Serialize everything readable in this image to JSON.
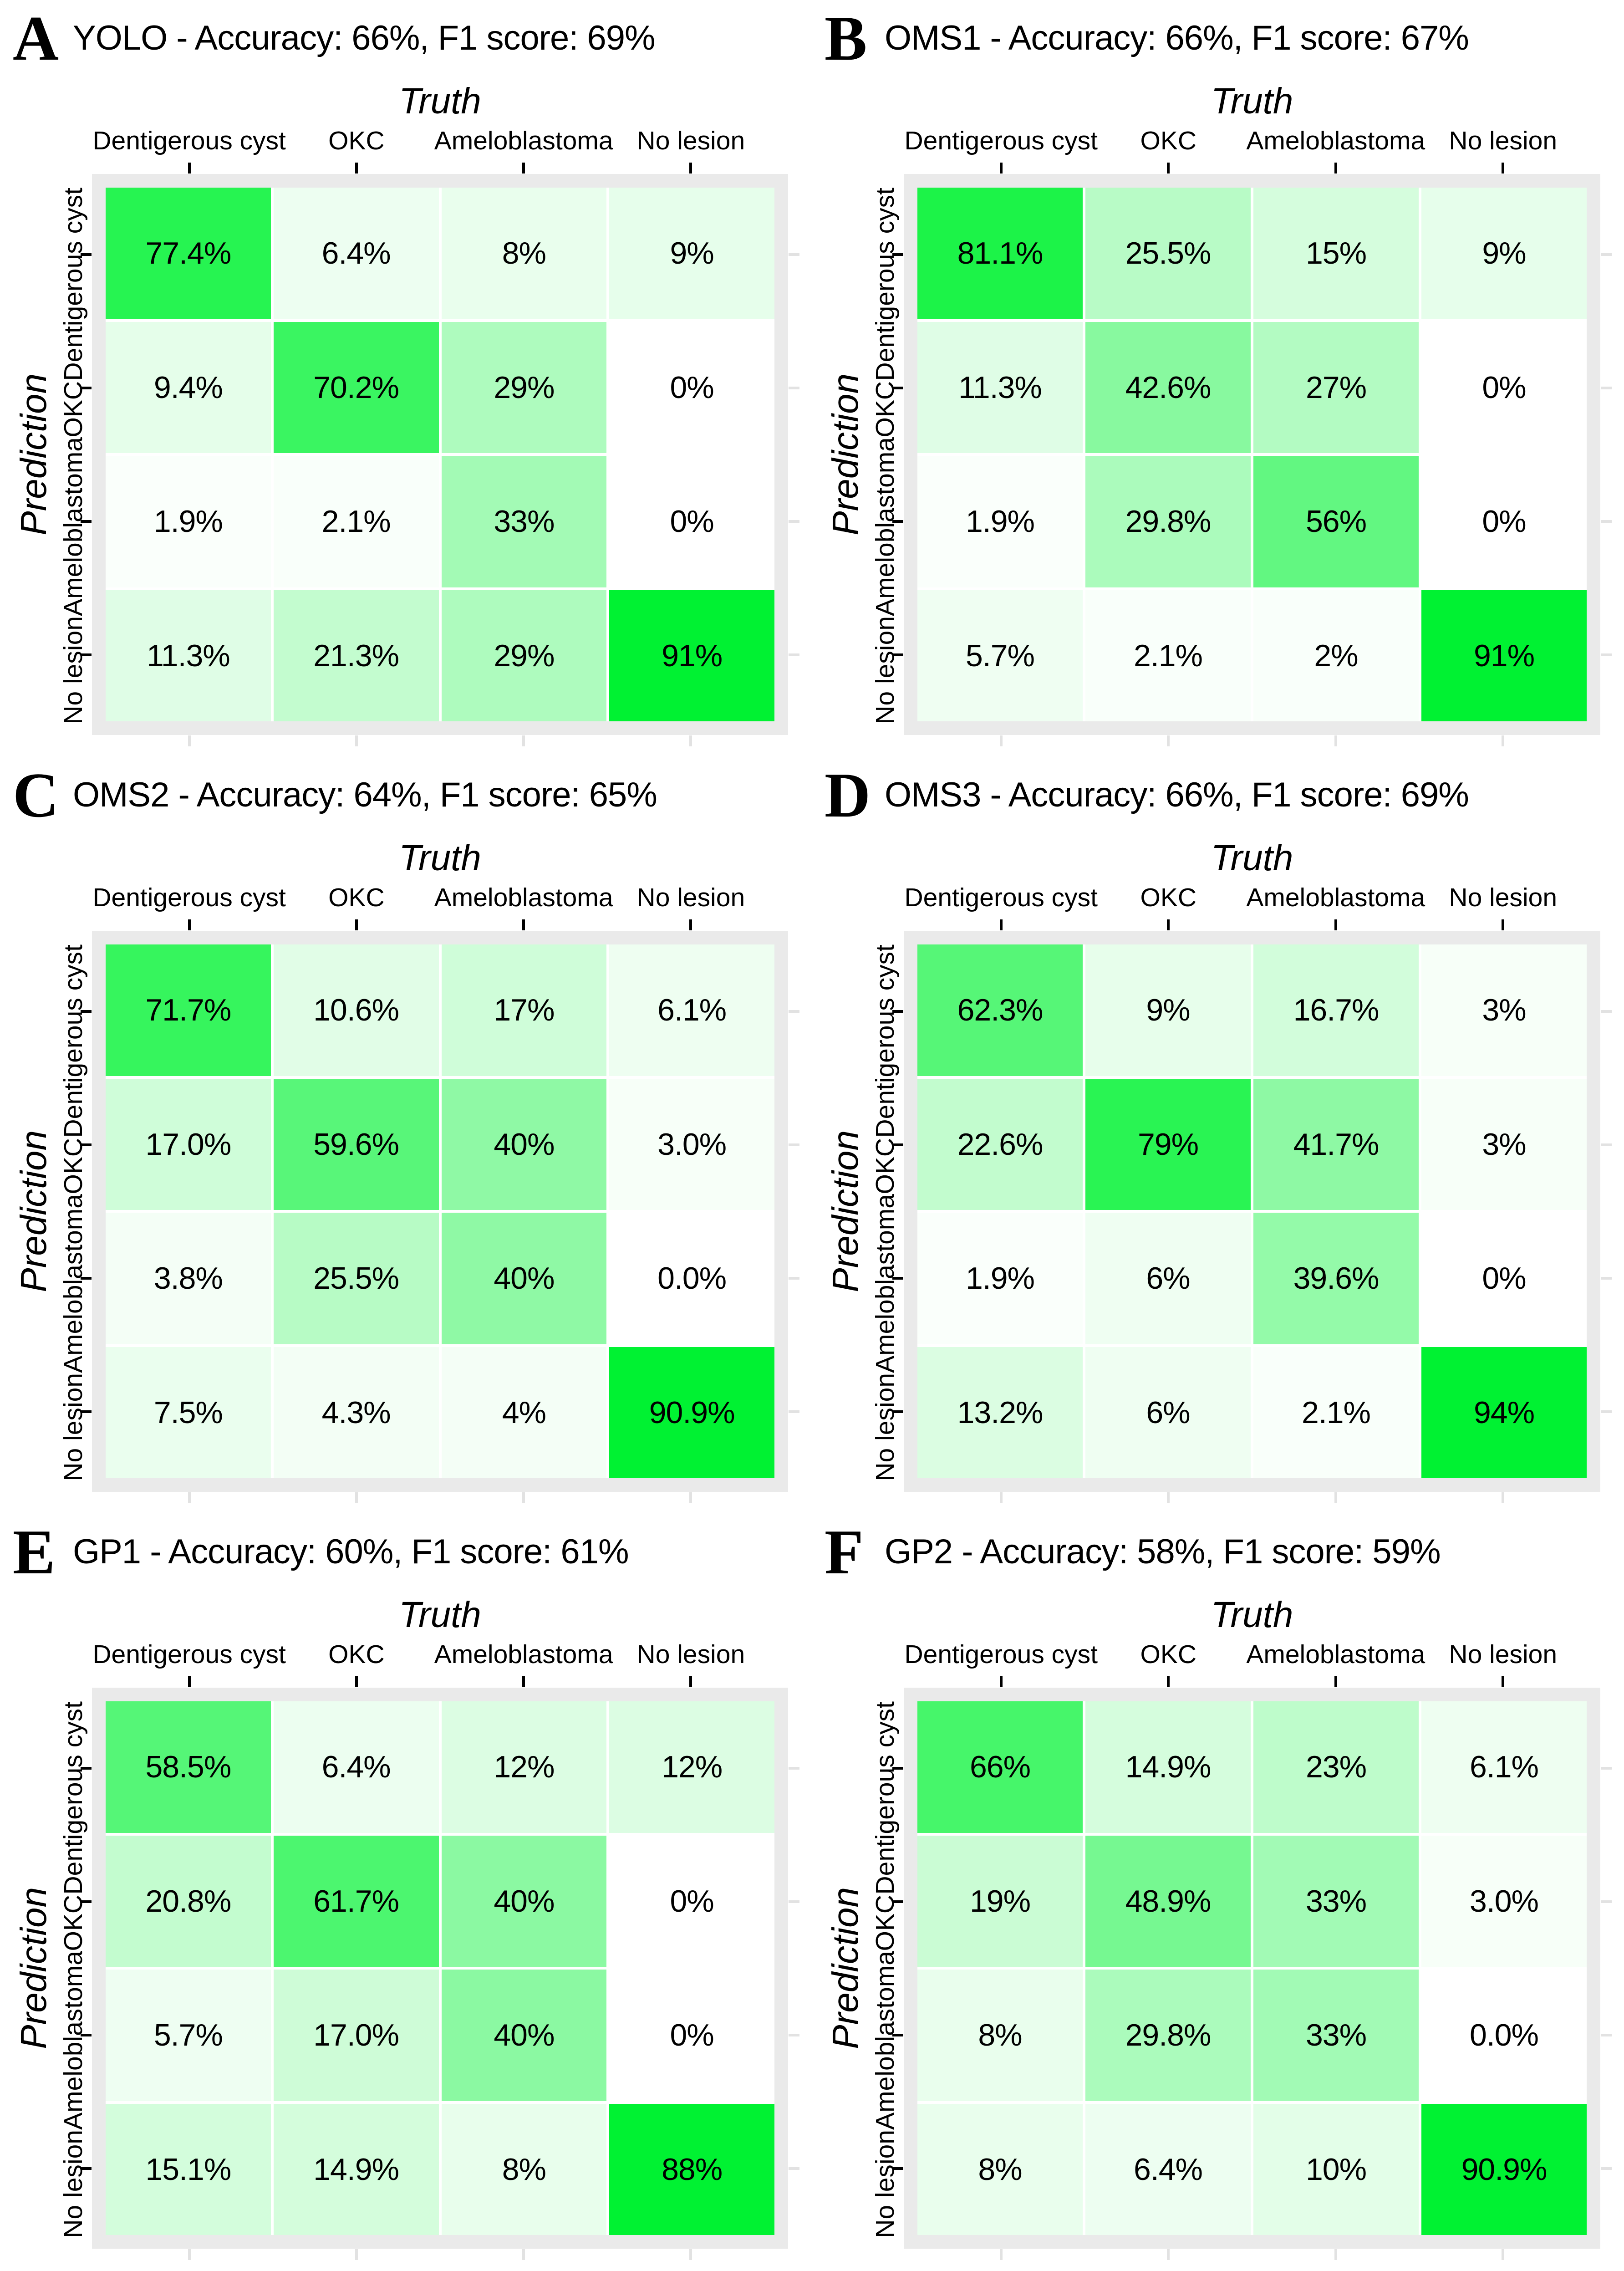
{
  "figure": {
    "description": "Confusion matrices of lesion classification by YOLO and human observers",
    "x_axis_title": "Truth",
    "y_axis_title": "Prediction",
    "categories": [
      "Dentigerous cyst",
      "OKC",
      "Ameloblastoma",
      "No lesion"
    ]
  },
  "colors": {
    "tile_low": "#ffffff",
    "tile_high": "#00f232",
    "tile_low_rgb": [
      255,
      255,
      255
    ],
    "tile_high_rgb": [
      0,
      242,
      50
    ],
    "panel_background": "#eaeaea",
    "tick_dark": "#000000",
    "tick_light": "#e2e2e2",
    "text": "#000000"
  },
  "chart_data": [
    {
      "type": "heatmap",
      "panel": "A",
      "model": "YOLO",
      "accuracy_pct": 66,
      "f1_pct": 69,
      "title": "YOLO -  Accuracy: 66%, F1 score: 69%",
      "xlabel": "Truth",
      "ylabel": "Prediction",
      "x_categories": [
        "Dentigerous cyst",
        "OKC",
        "Ameloblastoma",
        "No lesion"
      ],
      "y_categories": [
        "Dentigerous cyst",
        "OKC",
        "Ameloblastoma",
        "No lesion"
      ],
      "values": [
        [
          77.4,
          6.4,
          8,
          9
        ],
        [
          9.4,
          70.2,
          29,
          0
        ],
        [
          1.9,
          2.1,
          33,
          0
        ],
        [
          11.3,
          21.3,
          29,
          91
        ]
      ],
      "value_labels": [
        [
          "77.4%",
          "6.4%",
          "8%",
          "9%"
        ],
        [
          "9.4%",
          "70.2%",
          "29%",
          "0%"
        ],
        [
          "1.9%",
          "2.1%",
          "33%",
          "0%"
        ],
        [
          "11.3%",
          "21.3%",
          "29%",
          "91%"
        ]
      ],
      "colorscale": {
        "low": "#ffffff",
        "high": "#00f232",
        "domain": [
          0,
          91
        ]
      },
      "legend": false,
      "grid": false
    },
    {
      "type": "heatmap",
      "panel": "B",
      "model": "OMS1",
      "accuracy_pct": 66,
      "f1_pct": 67,
      "title": "OMS1 -  Accuracy: 66%, F1 score: 67%",
      "xlabel": "Truth",
      "ylabel": "Prediction",
      "x_categories": [
        "Dentigerous cyst",
        "OKC",
        "Ameloblastoma",
        "No lesion"
      ],
      "y_categories": [
        "Dentigerous cyst",
        "OKC",
        "Ameloblastoma",
        "No lesion"
      ],
      "values": [
        [
          81.1,
          25.5,
          15,
          9
        ],
        [
          11.3,
          42.6,
          27,
          0
        ],
        [
          1.9,
          29.8,
          56,
          0
        ],
        [
          5.7,
          2.1,
          2,
          91
        ]
      ],
      "value_labels": [
        [
          "81.1%",
          "25.5%",
          "15%",
          "9%"
        ],
        [
          "11.3%",
          "42.6%",
          "27%",
          "0%"
        ],
        [
          "1.9%",
          "29.8%",
          "56%",
          "0%"
        ],
        [
          "5.7%",
          "2.1%",
          "2%",
          "91%"
        ]
      ],
      "colorscale": {
        "low": "#ffffff",
        "high": "#00f232",
        "domain": [
          0,
          91
        ]
      },
      "legend": false,
      "grid": false
    },
    {
      "type": "heatmap",
      "panel": "C",
      "model": "OMS2",
      "accuracy_pct": 64,
      "f1_pct": 65,
      "title": "OMS2 -  Accuracy: 64%, F1 score: 65%",
      "xlabel": "Truth",
      "ylabel": "Prediction",
      "x_categories": [
        "Dentigerous cyst",
        "OKC",
        "Ameloblastoma",
        "No lesion"
      ],
      "y_categories": [
        "Dentigerous cyst",
        "OKC",
        "Ameloblastoma",
        "No lesion"
      ],
      "values": [
        [
          71.7,
          10.6,
          17,
          6.1
        ],
        [
          17.0,
          59.6,
          40,
          3.0
        ],
        [
          3.8,
          25.5,
          40,
          0.0
        ],
        [
          7.5,
          4.3,
          4,
          90.9
        ]
      ],
      "value_labels": [
        [
          "71.7%",
          "10.6%",
          "17%",
          "6.1%"
        ],
        [
          "17.0%",
          "59.6%",
          "40%",
          "3.0%"
        ],
        [
          "3.8%",
          "25.5%",
          "40%",
          "0.0%"
        ],
        [
          "7.5%",
          "4.3%",
          "4%",
          "90.9%"
        ]
      ],
      "colorscale": {
        "low": "#ffffff",
        "high": "#00f232",
        "domain": [
          0,
          90.9
        ]
      },
      "legend": false,
      "grid": false
    },
    {
      "type": "heatmap",
      "panel": "D",
      "model": "OMS3",
      "accuracy_pct": 66,
      "f1_pct": 69,
      "title": "OMS3 -  Accuracy: 66%, F1 score: 69%",
      "xlabel": "Truth",
      "ylabel": "Prediction",
      "x_categories": [
        "Dentigerous cyst",
        "OKC",
        "Ameloblastoma",
        "No lesion"
      ],
      "y_categories": [
        "Dentigerous cyst",
        "OKC",
        "Ameloblastoma",
        "No lesion"
      ],
      "values": [
        [
          62.3,
          9,
          16.7,
          3
        ],
        [
          22.6,
          79,
          41.7,
          3
        ],
        [
          1.9,
          6,
          39.6,
          0
        ],
        [
          13.2,
          6,
          2.1,
          94
        ]
      ],
      "value_labels": [
        [
          "62.3%",
          "9%",
          "16.7%",
          "3%"
        ],
        [
          "22.6%",
          "79%",
          "41.7%",
          "3%"
        ],
        [
          "1.9%",
          "6%",
          "39.6%",
          "0%"
        ],
        [
          "13.2%",
          "6%",
          "2.1%",
          "94%"
        ]
      ],
      "colorscale": {
        "low": "#ffffff",
        "high": "#00f232",
        "domain": [
          0,
          94
        ]
      },
      "legend": false,
      "grid": false
    },
    {
      "type": "heatmap",
      "panel": "E",
      "model": "GP1",
      "accuracy_pct": 60,
      "f1_pct": 61,
      "title": "GP1 -  Accuracy: 60%, F1 score: 61%",
      "xlabel": "Truth",
      "ylabel": "Prediction",
      "x_categories": [
        "Dentigerous cyst",
        "OKC",
        "Ameloblastoma",
        "No lesion"
      ],
      "y_categories": [
        "Dentigerous cyst",
        "OKC",
        "Ameloblastoma",
        "No lesion"
      ],
      "values": [
        [
          58.5,
          6.4,
          12,
          12
        ],
        [
          20.8,
          61.7,
          40,
          0
        ],
        [
          5.7,
          17.0,
          40,
          0
        ],
        [
          15.1,
          14.9,
          8,
          88
        ]
      ],
      "value_labels": [
        [
          "58.5%",
          "6.4%",
          "12%",
          "12%"
        ],
        [
          "20.8%",
          "61.7%",
          "40%",
          "0%"
        ],
        [
          "5.7%",
          "17.0%",
          "40%",
          "0%"
        ],
        [
          "15.1%",
          "14.9%",
          "8%",
          "88%"
        ]
      ],
      "colorscale": {
        "low": "#ffffff",
        "high": "#00f232",
        "domain": [
          0,
          88
        ]
      },
      "legend": false,
      "grid": false
    },
    {
      "type": "heatmap",
      "panel": "F",
      "model": "GP2",
      "accuracy_pct": 58,
      "f1_pct": 59,
      "title": "GP2 -  Accuracy: 58%, F1 score: 59%",
      "xlabel": "Truth",
      "ylabel": "Prediction",
      "x_categories": [
        "Dentigerous cyst",
        "OKC",
        "Ameloblastoma",
        "No lesion"
      ],
      "y_categories": [
        "Dentigerous cyst",
        "OKC",
        "Ameloblastoma",
        "No lesion"
      ],
      "values": [
        [
          66,
          14.9,
          23,
          6.1
        ],
        [
          19,
          48.9,
          33,
          3.0
        ],
        [
          8,
          29.8,
          33,
          0.0
        ],
        [
          8,
          6.4,
          10,
          90.9
        ]
      ],
      "value_labels": [
        [
          "66%",
          "14.9%",
          "23%",
          "6.1%"
        ],
        [
          "19%",
          "48.9%",
          "33%",
          "3.0%"
        ],
        [
          "8%",
          "29.8%",
          "33%",
          "0.0%"
        ],
        [
          "8%",
          "6.4%",
          "10%",
          "90.9%"
        ]
      ],
      "colorscale": {
        "low": "#ffffff",
        "high": "#00f232",
        "domain": [
          0,
          90.9
        ]
      },
      "legend": false,
      "grid": false
    }
  ]
}
